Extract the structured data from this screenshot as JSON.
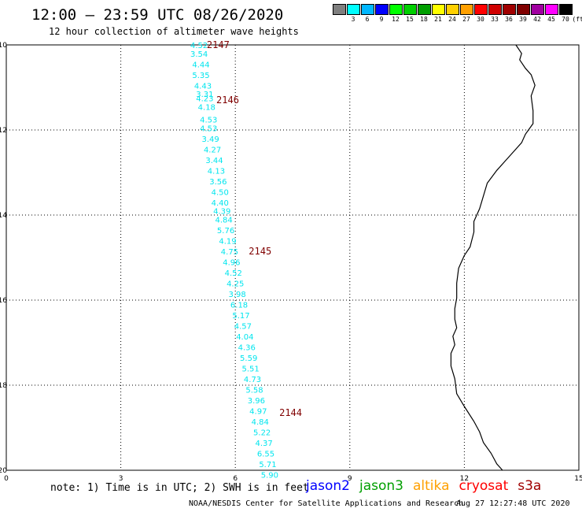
{
  "header": {
    "title": "12:00 – 23:59 UTC 08/26/2020",
    "subtitle": "12 hour collection of altimeter wave heights"
  },
  "colorbar": {
    "unit": "(ft)",
    "bins": [
      {
        "label": "",
        "color": "#7f7f7f"
      },
      {
        "label": "3",
        "color": "#00ffff"
      },
      {
        "label": "6",
        "color": "#00b7ff"
      },
      {
        "label": "9",
        "color": "#0000ff"
      },
      {
        "label": "12",
        "color": "#00ff00"
      },
      {
        "label": "15",
        "color": "#00d000"
      },
      {
        "label": "18",
        "color": "#009f00"
      },
      {
        "label": "21",
        "color": "#ffff00"
      },
      {
        "label": "24",
        "color": "#ffd000"
      },
      {
        "label": "27",
        "color": "#ffa000"
      },
      {
        "label": "30",
        "color": "#ff0000"
      },
      {
        "label": "33",
        "color": "#d00000"
      },
      {
        "label": "36",
        "color": "#a00000"
      },
      {
        "label": "39",
        "color": "#800000"
      },
      {
        "label": "42",
        "color": "#a000a0"
      },
      {
        "label": "45",
        "color": "#ff00ff"
      },
      {
        "label": "70",
        "color": "#000000"
      }
    ]
  },
  "map": {
    "xticks": [
      "0",
      "3",
      "6",
      "9",
      "12",
      "15"
    ],
    "yticks": [
      "-10",
      "-12",
      "-14",
      "-16",
      "-18",
      "-20"
    ],
    "xrange": [
      0,
      15
    ],
    "yrange": [
      -20,
      -10
    ],
    "swh_color": "#00e5ee",
    "time_color": "#800000",
    "coast_color": "#000000",
    "swh_points": [
      {
        "lon": 5.05,
        "lat": -10.0,
        "value": "4.52"
      },
      {
        "lon": 5.05,
        "lat": -10.2,
        "value": "3.54"
      },
      {
        "lon": 5.1,
        "lat": -10.45,
        "value": "4.44"
      },
      {
        "lon": 5.1,
        "lat": -10.7,
        "value": "5.35"
      },
      {
        "lon": 5.15,
        "lat": -10.95,
        "value": "4.43"
      },
      {
        "lon": 5.2,
        "lat": -11.15,
        "value": "3.31"
      },
      {
        "lon": 5.2,
        "lat": -11.25,
        "value": "4.23"
      },
      {
        "lon": 5.25,
        "lat": -11.45,
        "value": "4.18"
      },
      {
        "lon": 5.3,
        "lat": -11.75,
        "value": "4.53"
      },
      {
        "lon": 5.3,
        "lat": -11.95,
        "value": "4.53"
      },
      {
        "lon": 5.35,
        "lat": -12.2,
        "value": "3.49"
      },
      {
        "lon": 5.4,
        "lat": -12.45,
        "value": "4.27"
      },
      {
        "lon": 5.45,
        "lat": -12.7,
        "value": "3.44"
      },
      {
        "lon": 5.5,
        "lat": -12.95,
        "value": "4.13"
      },
      {
        "lon": 5.55,
        "lat": -13.2,
        "value": "3.56"
      },
      {
        "lon": 5.6,
        "lat": -13.45,
        "value": "4.50"
      },
      {
        "lon": 5.6,
        "lat": -13.7,
        "value": "4.40"
      },
      {
        "lon": 5.65,
        "lat": -13.9,
        "value": "4.39"
      },
      {
        "lon": 5.7,
        "lat": -14.1,
        "value": "4.84"
      },
      {
        "lon": 5.75,
        "lat": -14.35,
        "value": "5.76"
      },
      {
        "lon": 5.8,
        "lat": -14.6,
        "value": "4.19"
      },
      {
        "lon": 5.85,
        "lat": -14.85,
        "value": "4.75"
      },
      {
        "lon": 5.9,
        "lat": -15.1,
        "value": "4.96"
      },
      {
        "lon": 5.95,
        "lat": -15.35,
        "value": "4.52"
      },
      {
        "lon": 6.0,
        "lat": -15.6,
        "value": "4.25"
      },
      {
        "lon": 6.05,
        "lat": -15.85,
        "value": "3.98"
      },
      {
        "lon": 6.1,
        "lat": -16.1,
        "value": "6.18"
      },
      {
        "lon": 6.15,
        "lat": -16.35,
        "value": "5.17"
      },
      {
        "lon": 6.2,
        "lat": -16.6,
        "value": "4.57"
      },
      {
        "lon": 6.25,
        "lat": -16.85,
        "value": "4.04"
      },
      {
        "lon": 6.3,
        "lat": -17.1,
        "value": "4.36"
      },
      {
        "lon": 6.35,
        "lat": -17.35,
        "value": "5.59"
      },
      {
        "lon": 6.4,
        "lat": -17.6,
        "value": "5.51"
      },
      {
        "lon": 6.45,
        "lat": -17.85,
        "value": "4.73"
      },
      {
        "lon": 6.5,
        "lat": -18.1,
        "value": "5.58"
      },
      {
        "lon": 6.55,
        "lat": -18.35,
        "value": "3.96"
      },
      {
        "lon": 6.6,
        "lat": -18.6,
        "value": "4.97"
      },
      {
        "lon": 6.65,
        "lat": -18.85,
        "value": "4.84"
      },
      {
        "lon": 6.7,
        "lat": -19.1,
        "value": "5.22"
      },
      {
        "lon": 6.75,
        "lat": -19.35,
        "value": "4.37"
      },
      {
        "lon": 6.8,
        "lat": -19.6,
        "value": "6.55"
      },
      {
        "lon": 6.85,
        "lat": -19.85,
        "value": "5.71"
      },
      {
        "lon": 6.9,
        "lat": -20.1,
        "value": "5.90"
      }
    ],
    "time_labels": [
      {
        "lon": 5.55,
        "lat": -10.0,
        "value": "2147"
      },
      {
        "lon": 5.8,
        "lat": -11.3,
        "value": "2146"
      },
      {
        "lon": 6.65,
        "lat": -14.85,
        "value": "2145"
      },
      {
        "lon": 7.45,
        "lat": -18.65,
        "value": "2144"
      }
    ],
    "coastline": [
      [
        13.35,
        -10.0
      ],
      [
        13.5,
        -10.2
      ],
      [
        13.45,
        -10.35
      ],
      [
        13.6,
        -10.55
      ],
      [
        13.75,
        -10.7
      ],
      [
        13.85,
        -10.95
      ],
      [
        13.75,
        -11.2
      ],
      [
        13.8,
        -11.55
      ],
      [
        13.8,
        -11.85
      ],
      [
        13.6,
        -12.1
      ],
      [
        13.5,
        -12.3
      ],
      [
        13.3,
        -12.5
      ],
      [
        13.05,
        -12.75
      ],
      [
        12.85,
        -12.95
      ],
      [
        12.6,
        -13.25
      ],
      [
        12.5,
        -13.55
      ],
      [
        12.4,
        -13.85
      ],
      [
        12.25,
        -14.15
      ],
      [
        12.25,
        -14.4
      ],
      [
        12.15,
        -14.75
      ],
      [
        12.0,
        -14.95
      ],
      [
        11.85,
        -15.25
      ],
      [
        11.8,
        -15.6
      ],
      [
        11.8,
        -15.95
      ],
      [
        11.75,
        -16.2
      ],
      [
        11.75,
        -16.45
      ],
      [
        11.8,
        -16.65
      ],
      [
        11.7,
        -16.85
      ],
      [
        11.75,
        -17.05
      ],
      [
        11.65,
        -17.25
      ],
      [
        11.65,
        -17.55
      ],
      [
        11.75,
        -17.85
      ],
      [
        11.8,
        -18.2
      ],
      [
        12.0,
        -18.5
      ],
      [
        12.25,
        -18.85
      ],
      [
        12.4,
        -19.1
      ],
      [
        12.5,
        -19.35
      ],
      [
        12.7,
        -19.6
      ],
      [
        12.85,
        -19.85
      ],
      [
        13.0,
        -20.0
      ]
    ]
  },
  "footer": {
    "note": "note: 1) Time is in UTC; 2) SWH is in feet",
    "satellites": [
      {
        "name": "jason2",
        "color": "#0000ff"
      },
      {
        "name": "jason3",
        "color": "#009f00"
      },
      {
        "name": "altika",
        "color": "#ffa000"
      },
      {
        "name": "cryosat",
        "color": "#ff0000"
      },
      {
        "name": "s3a",
        "color": "#a00000"
      }
    ],
    "credit": "NOAA/NESDIS Center for Satellite Applications and Research",
    "timestamp": "Aug 27 12:27:48 UTC 2020"
  }
}
